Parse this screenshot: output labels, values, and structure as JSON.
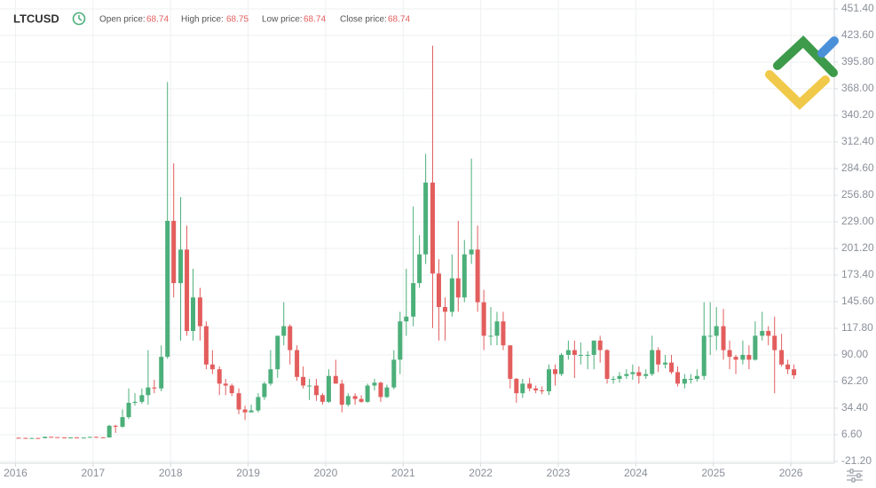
{
  "chart_data": {
    "type": "candlestick",
    "symbol": "LTCUSD",
    "info": [
      {
        "label": "Open price:",
        "value": 68.74
      },
      {
        "label": "High price:",
        "value": 68.75
      },
      {
        "label": "Low price:",
        "value": 68.74
      },
      {
        "label": "Close price:",
        "value": 68.74
      }
    ],
    "up_color": "#4caf7a",
    "down_color": "#e35d5d",
    "grid": true,
    "xlim": [
      2015.8,
      2026.56
    ],
    "xticks": [
      2016,
      2017,
      2018,
      2019,
      2020,
      2021,
      2022,
      2023,
      2024,
      2025,
      2026
    ],
    "ylim": [
      -21.2,
      451.4
    ],
    "yticks": [
      {
        "value": 451.4,
        "label": "451.40"
      },
      {
        "value": 423.6,
        "label": "423.60"
      },
      {
        "value": 395.8,
        "label": "395.80"
      },
      {
        "value": 368,
        "label": "368.00"
      },
      {
        "value": 340.2,
        "label": "340.20"
      },
      {
        "value": 312.4,
        "label": "312.40"
      },
      {
        "value": 284.6,
        "label": "284.60"
      },
      {
        "value": 256.8,
        "label": "256.80"
      },
      {
        "value": 229,
        "label": "229.00"
      },
      {
        "value": 201.2,
        "label": "201.20"
      },
      {
        "value": 173.4,
        "label": "173.40"
      },
      {
        "value": 145.6,
        "label": "145.60"
      },
      {
        "value": 117.8,
        "label": "117.80"
      },
      {
        "value": 90,
        "label": "90.00"
      },
      {
        "value": 62.2,
        "label": "62.20"
      },
      {
        "value": 34.4,
        "label": "34.40"
      },
      {
        "value": 6.6,
        "label": "6.60"
      },
      {
        "value": -21.2,
        "label": "-21.20"
      }
    ],
    "x": [
      2016.04,
      2016.13,
      2016.21,
      2016.29,
      2016.38,
      2016.46,
      2016.54,
      2016.63,
      2016.71,
      2016.79,
      2016.88,
      2016.96,
      2017.04,
      2017.13,
      2017.21,
      2017.29,
      2017.38,
      2017.46,
      2017.54,
      2017.63,
      2017.71,
      2017.79,
      2017.88,
      2017.96,
      2018.04,
      2018.13,
      2018.21,
      2018.29,
      2018.38,
      2018.46,
      2018.54,
      2018.63,
      2018.71,
      2018.79,
      2018.88,
      2018.96,
      2019.04,
      2019.13,
      2019.21,
      2019.29,
      2019.38,
      2019.46,
      2019.54,
      2019.63,
      2019.71,
      2019.79,
      2019.88,
      2019.96,
      2020.04,
      2020.13,
      2020.21,
      2020.29,
      2020.38,
      2020.46,
      2020.54,
      2020.63,
      2020.71,
      2020.79,
      2020.88,
      2020.96,
      2021.04,
      2021.13,
      2021.21,
      2021.29,
      2021.38,
      2021.46,
      2021.54,
      2021.63,
      2021.71,
      2021.79,
      2021.88,
      2021.96,
      2022.04,
      2022.13,
      2022.21,
      2022.29,
      2022.38,
      2022.46,
      2022.54,
      2022.63,
      2022.71,
      2022.79,
      2022.88,
      2022.96,
      2023.04,
      2023.13,
      2023.21,
      2023.29,
      2023.38,
      2023.46,
      2023.54,
      2023.63,
      2023.71,
      2023.79,
      2023.88,
      2023.96,
      2024.04,
      2024.13,
      2024.21,
      2024.29,
      2024.38,
      2024.46,
      2024.54,
      2024.63,
      2024.71,
      2024.79,
      2024.88,
      2024.96,
      2025.04,
      2025.13,
      2025.21,
      2025.29,
      2025.38,
      2025.46,
      2025.54,
      2025.63,
      2025.71,
      2025.79,
      2025.88,
      2025.96,
      2026.04
    ],
    "open": [
      3.5,
      3.3,
      3.1,
      3.2,
      3.1,
      4.5,
      4.1,
      3.8,
      3.7,
      3.8,
      3.7,
      3.7,
      4.4,
      3.9,
      3.8,
      16,
      15,
      25,
      40,
      41,
      48,
      56,
      55,
      88,
      230,
      165,
      200,
      115,
      150,
      120,
      80,
      75,
      60,
      58,
      50,
      33,
      30,
      32,
      46,
      60,
      75,
      110,
      120,
      95,
      67,
      58,
      58,
      48,
      41,
      68,
      60,
      38,
      47,
      44,
      41,
      58,
      61,
      46,
      56,
      85,
      125,
      130,
      165,
      195,
      270,
      175,
      140,
      135,
      170,
      150,
      195,
      200,
      145,
      110,
      110,
      125,
      100,
      65,
      50,
      60,
      55,
      53,
      52,
      75,
      70,
      90,
      95,
      90,
      90,
      90,
      105,
      95,
      65,
      65,
      68,
      70,
      72,
      68,
      70,
      95,
      80,
      82,
      72,
      60,
      65,
      65,
      68,
      110,
      110,
      120,
      95,
      88,
      85,
      90,
      85,
      110,
      115,
      110,
      95,
      80,
      75
    ],
    "high": [
      3.7,
      3.6,
      3.4,
      3.4,
      4.7,
      4.6,
      4.2,
      3.9,
      3.9,
      3.9,
      3.9,
      4.5,
      4.7,
      4,
      17,
      17,
      33,
      55,
      50,
      55,
      95,
      64,
      100,
      375,
      290,
      255,
      225,
      180,
      160,
      125,
      95,
      78,
      65,
      60,
      55,
      37,
      38,
      50,
      62,
      95,
      110,
      145,
      122,
      100,
      78,
      65,
      65,
      50,
      75,
      85,
      64,
      50,
      50,
      48,
      60,
      65,
      62,
      59,
      95,
      135,
      180,
      245,
      215,
      300,
      413,
      190,
      150,
      195,
      230,
      210,
      295,
      225,
      158,
      140,
      135,
      135,
      100,
      66,
      65,
      66,
      58,
      57,
      80,
      80,
      92,
      105,
      105,
      103,
      94,
      105,
      110,
      96,
      68,
      72,
      75,
      80,
      78,
      75,
      110,
      98,
      90,
      90,
      78,
      70,
      70,
      75,
      145,
      145,
      140,
      138,
      105,
      90,
      105,
      100,
      125,
      135,
      120,
      130,
      112,
      85,
      80
    ],
    "low": [
      3,
      3,
      3,
      3,
      3,
      3.5,
      3.6,
      3.6,
      3.6,
      3.6,
      3.6,
      3.6,
      3.6,
      3.7,
      3.7,
      8.5,
      14,
      23,
      37,
      39,
      38,
      50,
      52,
      86,
      150,
      105,
      110,
      105,
      105,
      75,
      70,
      48,
      48,
      47,
      28,
      22,
      30,
      30,
      43,
      58,
      66,
      100,
      80,
      63,
      55,
      43,
      42,
      38,
      40,
      60,
      30,
      36,
      38,
      40,
      40,
      53,
      41,
      45,
      54,
      70,
      110,
      120,
      160,
      185,
      118,
      105,
      105,
      130,
      135,
      145,
      185,
      135,
      95,
      100,
      100,
      95,
      55,
      40,
      45,
      52,
      50,
      49,
      48,
      58,
      68,
      85,
      66,
      80,
      75,
      75,
      82,
      60,
      60,
      61,
      65,
      64,
      60,
      65,
      68,
      72,
      76,
      70,
      57,
      55,
      60,
      62,
      64,
      90,
      95,
      85,
      75,
      70,
      80,
      75,
      84,
      105,
      100,
      50,
      78,
      70,
      65
    ],
    "close": [
      3.3,
      3.1,
      3.2,
      3.1,
      4.5,
      4.1,
      3.8,
      3.7,
      3.8,
      3.7,
      3.7,
      4.4,
      3.9,
      3.8,
      16,
      15,
      25,
      40,
      41,
      48,
      56,
      55,
      88,
      230,
      165,
      200,
      115,
      150,
      120,
      80,
      75,
      60,
      58,
      50,
      33,
      30,
      32,
      46,
      60,
      75,
      110,
      120,
      95,
      67,
      58,
      58,
      48,
      41,
      68,
      60,
      38,
      47,
      44,
      41,
      58,
      61,
      46,
      56,
      85,
      125,
      130,
      165,
      195,
      270,
      175,
      140,
      135,
      170,
      150,
      195,
      200,
      145,
      110,
      110,
      125,
      100,
      65,
      50,
      60,
      55,
      53,
      52,
      75,
      70,
      90,
      95,
      90,
      90,
      90,
      105,
      95,
      65,
      65,
      68,
      70,
      72,
      68,
      70,
      95,
      80,
      82,
      72,
      60,
      65,
      65,
      68,
      110,
      110,
      120,
      95,
      88,
      85,
      90,
      85,
      110,
      115,
      110,
      95,
      80,
      75,
      68.74
    ]
  }
}
